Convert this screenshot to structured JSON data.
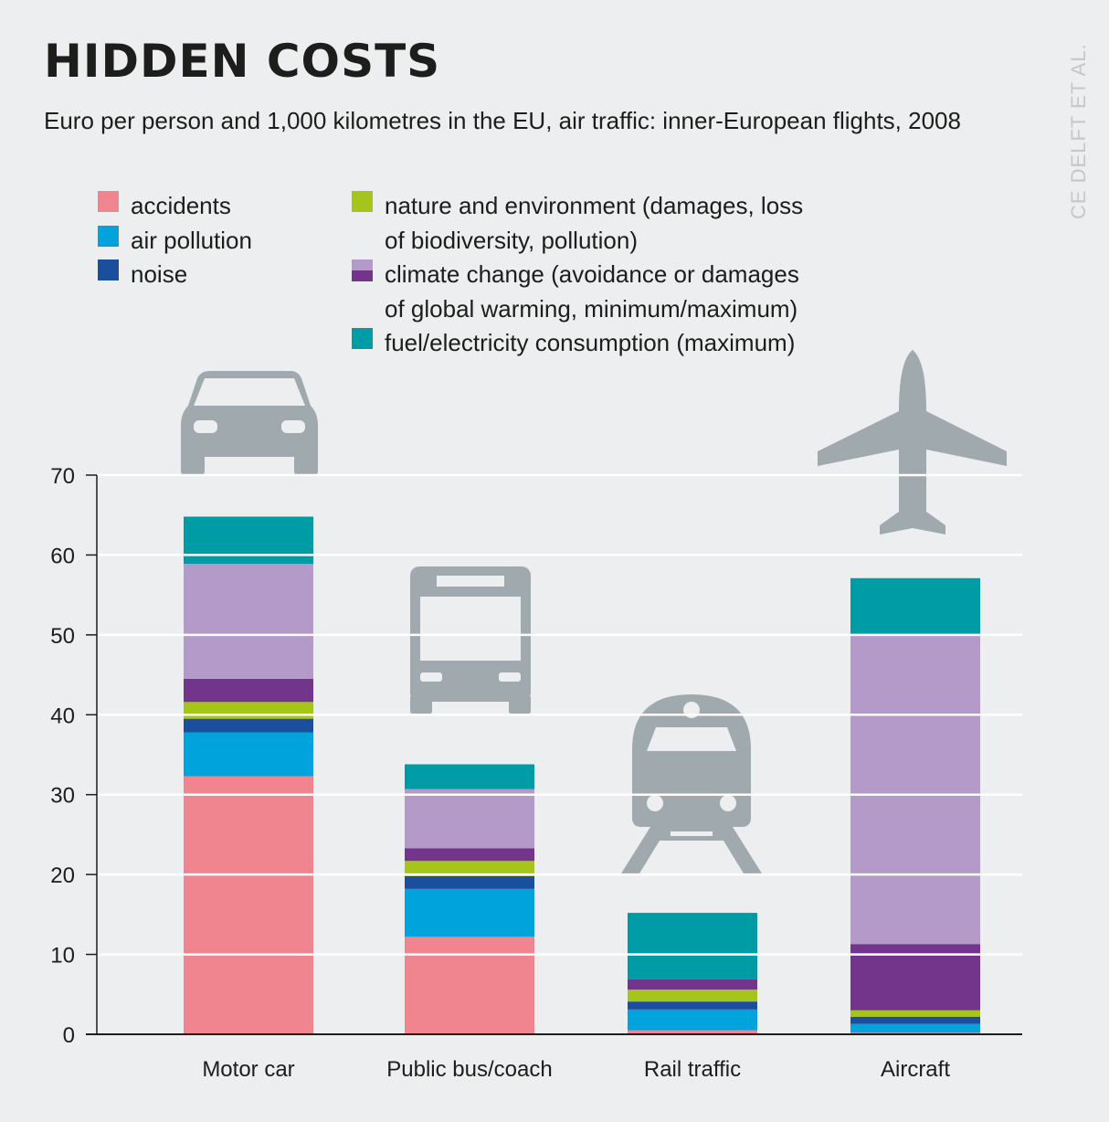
{
  "title": "HIDDEN COSTS",
  "subtitle": "Euro per person and 1,000 kilometres in the EU, air traffic: inner-European flights, 2008",
  "source": "CE DELFT ET AL.",
  "legend": {
    "col1": [
      {
        "key": "accidents",
        "label": "accidents"
      },
      {
        "key": "air_pollution",
        "label": "air pollution"
      },
      {
        "key": "noise",
        "label": "noise"
      }
    ],
    "col2": [
      {
        "key": "nature",
        "label": "nature and environment (damages, loss",
        "label2": "of biodiversity, pollution)"
      },
      {
        "key": "climate",
        "label": "climate change (avoidance or damages",
        "label2": "of global warming, minimum/maximum)"
      },
      {
        "key": "fuel",
        "label": "fuel/electricity consumption (maximum)"
      }
    ]
  },
  "icons": [
    "car-icon",
    "bus-icon",
    "train-icon",
    "airplane-icon"
  ],
  "chart_data": {
    "type": "bar",
    "stacked": true,
    "categories": [
      "Motor car",
      "Public bus/coach",
      "Rail traffic",
      "Aircraft"
    ],
    "ylim": [
      0,
      70
    ],
    "yticks": [
      0,
      10,
      20,
      30,
      40,
      50,
      60,
      70
    ],
    "grid": true,
    "legend_position": "top",
    "series": [
      {
        "name": "accidents",
        "color": "#f1858f",
        "values": [
          32.3,
          12.2,
          0.5,
          0.2
        ]
      },
      {
        "name": "air pollution",
        "color": "#00a3dc",
        "values": [
          5.5,
          6.0,
          2.6,
          1.1
        ]
      },
      {
        "name": "noise",
        "color": "#1b4f9d",
        "values": [
          1.7,
          1.6,
          1.0,
          0.9
        ]
      },
      {
        "name": "nature and environment (damages, loss of biodiversity, pollution)",
        "color": "#a6c51b",
        "values": [
          2.1,
          1.9,
          1.5,
          0.8
        ]
      },
      {
        "name": "climate change (minimum)",
        "color": "#72358b",
        "values": [
          2.9,
          1.6,
          1.3,
          8.3
        ]
      },
      {
        "name": "climate change (maximum)",
        "color": "#b49ac9",
        "values": [
          14.4,
          7.4,
          0,
          38.7
        ]
      },
      {
        "name": "fuel/electricity consumption (maximum)",
        "color": "#009ca6",
        "values": [
          5.9,
          3.1,
          8.3,
          7.1
        ]
      }
    ]
  }
}
